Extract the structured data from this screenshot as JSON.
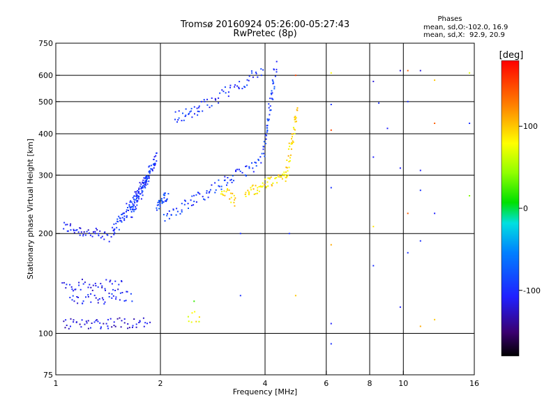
{
  "chart_data": {
    "type": "scatter",
    "title": "Tromsø 20160924 05:26:00-05:27:43",
    "subtitle": "RwPretec (8p)",
    "stats": {
      "heading": "Phases",
      "line1": "mean, sd,O:-102.0, 16.9",
      "line2": "mean, sd,X:  92.9, 20.9"
    },
    "xlabel": "Frequency [MHz]",
    "ylabel": "Stationary phase Virtual Height [km]",
    "x_scale": "log",
    "y_scale": "log",
    "xlim": [
      1,
      16
    ],
    "ylim": [
      75,
      750
    ],
    "x_ticks": [
      {
        "value": 1,
        "label": "1"
      },
      {
        "value": 2,
        "label": "2"
      },
      {
        "value": 4,
        "label": "4"
      },
      {
        "value": 6,
        "label": "6"
      },
      {
        "value": 8,
        "label": "8"
      },
      {
        "value": 10,
        "label": "10"
      },
      {
        "value": 16,
        "label": "16"
      }
    ],
    "x_gridlines": [
      2,
      4,
      6,
      8,
      10
    ],
    "y_ticks": [
      {
        "value": 75,
        "label": "75"
      },
      {
        "value": 100,
        "label": "100"
      },
      {
        "value": 200,
        "label": "200"
      },
      {
        "value": 300,
        "label": "300"
      },
      {
        "value": 400,
        "label": "400"
      },
      {
        "value": 500,
        "label": "500"
      },
      {
        "value": 600,
        "label": "600"
      },
      {
        "value": 750,
        "label": "750"
      }
    ],
    "y_gridlines": [
      100,
      200,
      300,
      400,
      500,
      600
    ],
    "grid": true,
    "colorbar": {
      "label": "[deg]",
      "range": [
        -180,
        180
      ],
      "ticks": [
        {
          "value": 100,
          "label": "100"
        },
        {
          "value": 0,
          "label": "0"
        },
        {
          "value": -100,
          "label": "-100"
        }
      ]
    },
    "traces": [
      {
        "freq_range": [
          1.05,
          1.42
        ],
        "height_range": [
          210,
          195
        ],
        "phase": -110,
        "points": 45
      },
      {
        "freq_range": [
          1.05,
          1.55
        ],
        "height_range": [
          140,
          140
        ],
        "phase": -115,
        "points": 40
      },
      {
        "freq_range": [
          1.05,
          1.85
        ],
        "height_range": [
          107,
          108
        ],
        "phase": -120,
        "points": 60
      },
      {
        "freq_range": [
          1.1,
          1.65
        ],
        "height_range": [
          125,
          130
        ],
        "phase": -105,
        "points": 40
      },
      {
        "freq_range": [
          1.45,
          1.85
        ],
        "height_range": [
          200,
          300
        ],
        "phase": -100,
        "points": 80
      },
      {
        "freq_range": [
          1.65,
          1.95
        ],
        "height_range": [
          230,
          340
        ],
        "phase": -95,
        "points": 90
      },
      {
        "freq_range": [
          1.95,
          2.1
        ],
        "height_range": [
          240,
          260
        ],
        "phase": -85,
        "points": 30
      },
      {
        "freq_range": [
          2.05,
          3.9
        ],
        "height_range": [
          225,
          330
        ],
        "phase": -95,
        "points": 85
      },
      {
        "freq_range": [
          3.95,
          4.3
        ],
        "height_range": [
          340,
          640
        ],
        "phase": -92,
        "points": 50
      },
      {
        "freq_range": [
          2.2,
          2.6
        ],
        "height_range": [
          450,
          470
        ],
        "phase": -95,
        "points": 25
      },
      {
        "freq_range": [
          2.6,
          3.95
        ],
        "height_range": [
          480,
          620
        ],
        "phase": -100,
        "points": 45
      },
      {
        "freq_range": [
          3.0,
          3.3
        ],
        "height_range": [
          270,
          250
        ],
        "phase": 95,
        "points": 20
      },
      {
        "freq_range": [
          3.5,
          4.6
        ],
        "height_range": [
          265,
          300
        ],
        "phase": 90,
        "points": 55
      },
      {
        "freq_range": [
          4.6,
          4.95
        ],
        "height_range": [
          300,
          470
        ],
        "phase": 92,
        "points": 45
      },
      {
        "freq_range": [
          2.4,
          2.6
        ],
        "height_range": [
          111,
          113
        ],
        "phase": 80,
        "points": 8
      }
    ],
    "scattered_points": [
      {
        "x": 6.2,
        "y": 93,
        "phase": -100
      },
      {
        "x": 6.2,
        "y": 107,
        "phase": -110
      },
      {
        "x": 6.2,
        "y": 275,
        "phase": -100
      },
      {
        "x": 6.2,
        "y": 410,
        "phase": 150
      },
      {
        "x": 6.2,
        "y": 490,
        "phase": -100
      },
      {
        "x": 6.2,
        "y": 610,
        "phase": 80
      },
      {
        "x": 6.2,
        "y": 185,
        "phase": 110
      },
      {
        "x": 8.2,
        "y": 160,
        "phase": -100
      },
      {
        "x": 8.2,
        "y": 210,
        "phase": 90
      },
      {
        "x": 8.2,
        "y": 340,
        "phase": -110
      },
      {
        "x": 8.2,
        "y": 575,
        "phase": -120
      },
      {
        "x": 8.5,
        "y": 495,
        "phase": -100
      },
      {
        "x": 9.0,
        "y": 415,
        "phase": -110
      },
      {
        "x": 9.8,
        "y": 120,
        "phase": -110
      },
      {
        "x": 9.8,
        "y": 315,
        "phase": -110
      },
      {
        "x": 9.8,
        "y": 620,
        "phase": -120
      },
      {
        "x": 10.3,
        "y": 175,
        "phase": -100
      },
      {
        "x": 10.3,
        "y": 230,
        "phase": 140
      },
      {
        "x": 10.3,
        "y": 500,
        "phase": -100
      },
      {
        "x": 10.3,
        "y": 620,
        "phase": 140
      },
      {
        "x": 11.2,
        "y": 105,
        "phase": 110
      },
      {
        "x": 11.2,
        "y": 190,
        "phase": -100
      },
      {
        "x": 11.2,
        "y": 270,
        "phase": -100
      },
      {
        "x": 11.2,
        "y": 310,
        "phase": -110
      },
      {
        "x": 11.2,
        "y": 620,
        "phase": -120
      },
      {
        "x": 12.3,
        "y": 110,
        "phase": 100
      },
      {
        "x": 12.3,
        "y": 230,
        "phase": -110
      },
      {
        "x": 12.3,
        "y": 430,
        "phase": 140
      },
      {
        "x": 12.3,
        "y": 580,
        "phase": 100
      },
      {
        "x": 15.5,
        "y": 260,
        "phase": 40
      },
      {
        "x": 15.5,
        "y": 430,
        "phase": -100
      },
      {
        "x": 15.5,
        "y": 610,
        "phase": 70
      },
      {
        "x": 4.9,
        "y": 130,
        "phase": 100
      },
      {
        "x": 4.9,
        "y": 600,
        "phase": 150
      },
      {
        "x": 4.7,
        "y": 200,
        "phase": -100
      },
      {
        "x": 3.4,
        "y": 130,
        "phase": -100
      },
      {
        "x": 3.4,
        "y": 200,
        "phase": -100
      },
      {
        "x": 2.5,
        "y": 125,
        "phase": 20
      }
    ]
  }
}
